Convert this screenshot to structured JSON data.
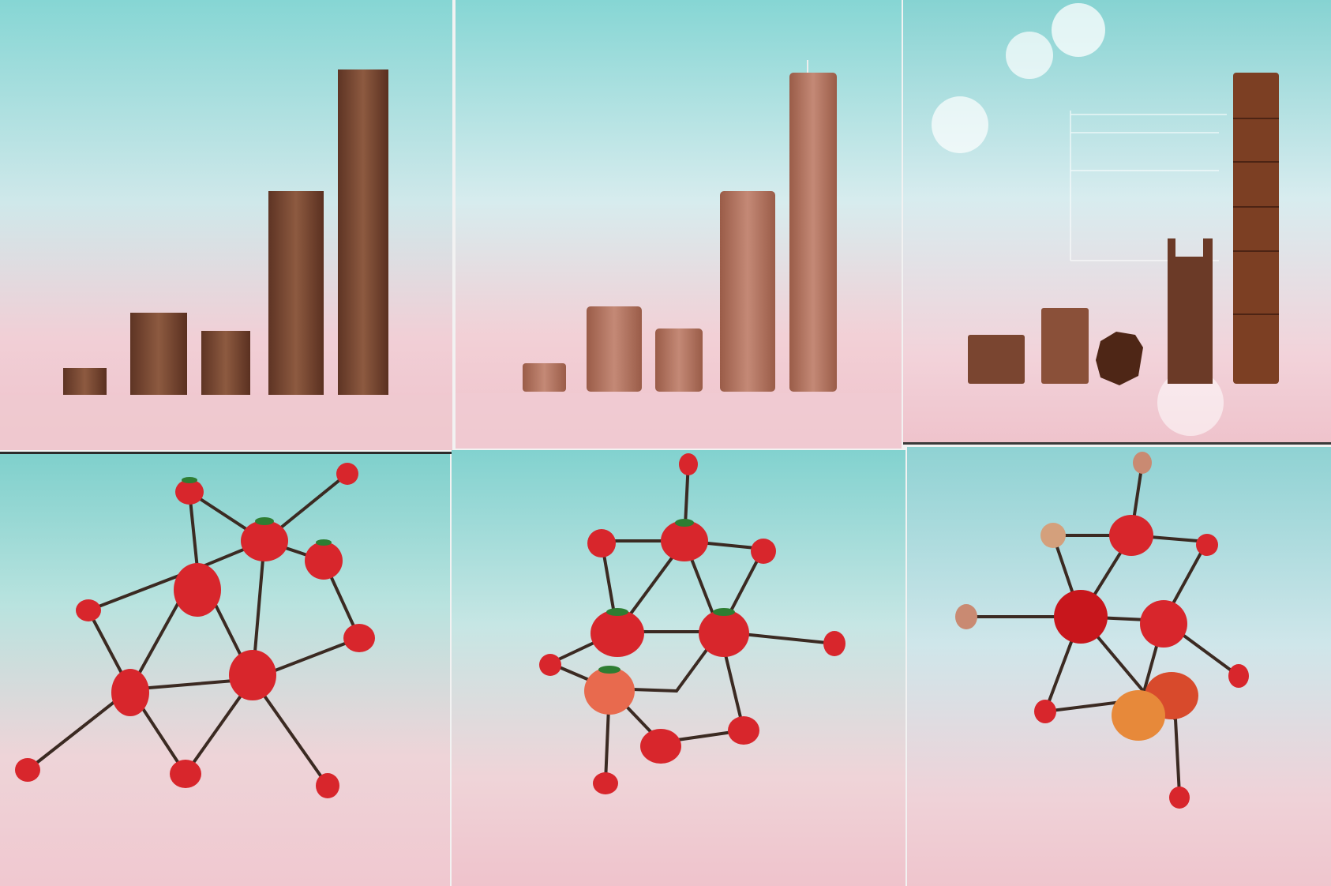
{
  "panels": [
    {
      "subject": "wood-bars",
      "label": ""
    },
    {
      "subject": "candle-bars",
      "label": ""
    },
    {
      "subject": "chocolate-bars",
      "label": ""
    },
    {
      "subject": "strawberry-network",
      "label": ""
    },
    {
      "subject": "strawberry-network",
      "label": ""
    },
    {
      "subject": "apple-cherry-network",
      "label": ""
    }
  ],
  "colors": {
    "sky_top": "#7fd3d3",
    "sky_bottom": "#f2c9d0",
    "wood": "#7a4a35",
    "candle": "#b27563",
    "chocolate": "#6b3a26",
    "strawberry": "#d8262c",
    "stem": "#3b2a22"
  }
}
